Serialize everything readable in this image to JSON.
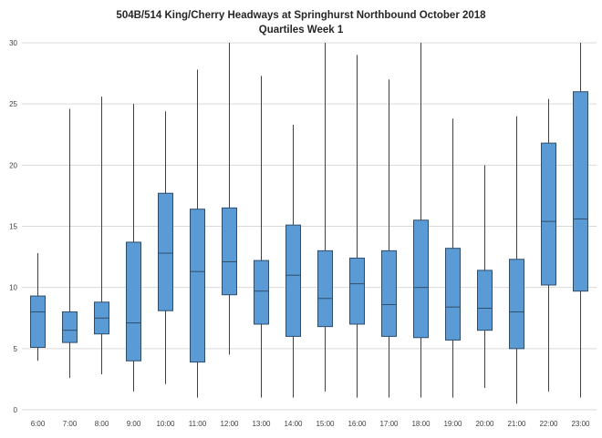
{
  "colors": {
    "box_fill": "#5B9BD5",
    "box_stroke": "#2E4D6B",
    "whisker": "#404040",
    "gridline": "#D9D9D9",
    "text": "#404040"
  },
  "chart_data": {
    "type": "boxplot",
    "title": "504B/514 King/Cherry Headways at Springhurst Northbound October 2018",
    "subtitle": "Quartiles Week 1",
    "xlabel": "",
    "ylabel": "",
    "ylim": [
      0,
      30
    ],
    "yticks": [
      0,
      5,
      10,
      15,
      20,
      25,
      30
    ],
    "grid": "horizontal",
    "legend": "none",
    "categories": [
      "6:00",
      "7:00",
      "8:00",
      "9:00",
      "10:00",
      "11:00",
      "12:00",
      "13:00",
      "14:00",
      "15:00",
      "16:00",
      "17:00",
      "18:00",
      "19:00",
      "20:00",
      "21:00",
      "22:00",
      "23:00"
    ],
    "boxes": [
      {
        "low": 4.0,
        "q1": 5.1,
        "median": 8.0,
        "q3": 9.3,
        "high": 12.8
      },
      {
        "low": 2.6,
        "q1": 5.5,
        "median": 6.5,
        "q3": 8.0,
        "high": 24.6
      },
      {
        "low": 2.9,
        "q1": 6.2,
        "median": 7.5,
        "q3": 8.8,
        "high": 25.6
      },
      {
        "low": 1.5,
        "q1": 4.0,
        "median": 7.1,
        "q3": 13.7,
        "high": 25.0
      },
      {
        "low": 2.1,
        "q1": 8.1,
        "median": 12.8,
        "q3": 17.7,
        "high": 24.4
      },
      {
        "low": 1.0,
        "q1": 3.9,
        "median": 11.3,
        "q3": 16.4,
        "high": 27.8
      },
      {
        "low": 4.5,
        "q1": 9.4,
        "median": 12.1,
        "q3": 16.5,
        "high": 30.0
      },
      {
        "low": 1.0,
        "q1": 7.0,
        "median": 9.7,
        "q3": 12.2,
        "high": 27.3
      },
      {
        "low": 1.0,
        "q1": 6.0,
        "median": 11.0,
        "q3": 15.1,
        "high": 23.3
      },
      {
        "low": 1.5,
        "q1": 6.8,
        "median": 9.1,
        "q3": 13.0,
        "high": 30.0
      },
      {
        "low": 1.0,
        "q1": 7.0,
        "median": 10.3,
        "q3": 12.4,
        "high": 29.0
      },
      {
        "low": 1.0,
        "q1": 6.0,
        "median": 8.6,
        "q3": 13.0,
        "high": 27.0
      },
      {
        "low": 1.0,
        "q1": 5.9,
        "median": 10.0,
        "q3": 15.5,
        "high": 30.0
      },
      {
        "low": 1.0,
        "q1": 5.7,
        "median": 8.4,
        "q3": 13.2,
        "high": 23.8
      },
      {
        "low": 1.8,
        "q1": 6.5,
        "median": 8.3,
        "q3": 11.4,
        "high": 20.0
      },
      {
        "low": 0.5,
        "q1": 5.0,
        "median": 8.0,
        "q3": 12.3,
        "high": 24.0
      },
      {
        "low": 1.5,
        "q1": 10.2,
        "median": 15.4,
        "q3": 21.8,
        "high": 25.4
      },
      {
        "low": 1.0,
        "q1": 9.7,
        "median": 15.6,
        "q3": 26.0,
        "high": 30.0
      }
    ]
  }
}
